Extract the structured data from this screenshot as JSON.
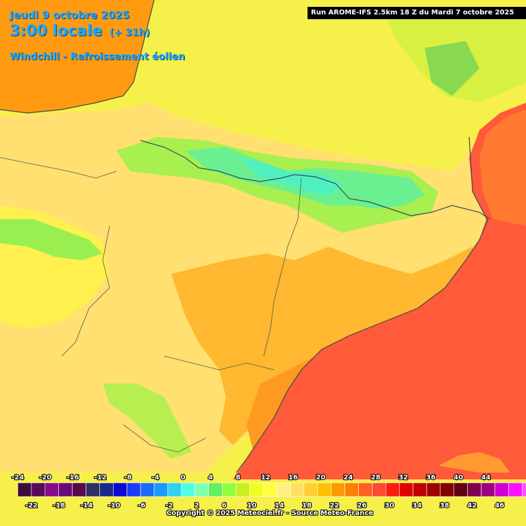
{
  "header": {
    "date": "Jeudi 9 octobre 2025",
    "time": "3:00 locale",
    "offset": "(+ 31h)",
    "parameter": "Windchill - Refroissement éolien"
  },
  "run_info": "Run AROME-IFS 2.5km 18 Z du Mardi 7 octobre 2025",
  "copyright": "Copyright © 2025 Meteociel.fr - Source Meteo-France",
  "legend": {
    "top_labels": [
      "-24",
      "-20",
      "-16",
      "-12",
      "-8",
      "-4",
      "0",
      "4",
      "8",
      "12",
      "16",
      "20",
      "24",
      "28",
      "32",
      "36",
      "40",
      "44"
    ],
    "bottom_labels": [
      "-22",
      "-18",
      "-14",
      "-10",
      "-6",
      "-2",
      "2",
      "6",
      "10",
      "14",
      "18",
      "22",
      "26",
      "30",
      "34",
      "38",
      "42",
      "46"
    ],
    "colors": [
      "#3c0a3c",
      "#5a0a5a",
      "#8a0a8a",
      "#6a0a7a",
      "#5a0a4a",
      "#303060",
      "#1a2a8a",
      "#0a0ad0",
      "#1a3aff",
      "#1a6aff",
      "#1a9aff",
      "#30d0f0",
      "#50ffe0",
      "#80ffb0",
      "#60f060",
      "#90ff40",
      "#c8f020",
      "#f0ff20",
      "#ffff40",
      "#fff080",
      "#ffe060",
      "#ffd030",
      "#ffc000",
      "#ff9a00",
      "#ff8000",
      "#ff6020",
      "#ff4a30",
      "#ff1a10",
      "#e00000",
      "#c00000",
      "#a00000",
      "#800000",
      "#600010",
      "#800050",
      "#a00080",
      "#d000d0",
      "#ff10ff",
      "#ff50ff",
      "#ff90ff"
    ]
  },
  "map_colors": {
    "sea": "#ff5a3a",
    "atlantic": "#ff9a10",
    "land_warm": "#ffb830",
    "land_mild": "#ffd870",
    "land_cool": "#ffff40",
    "mountain_cool": "#9aef50",
    "mountain_cold": "#5af0a0",
    "border": "#4a5a5a"
  }
}
